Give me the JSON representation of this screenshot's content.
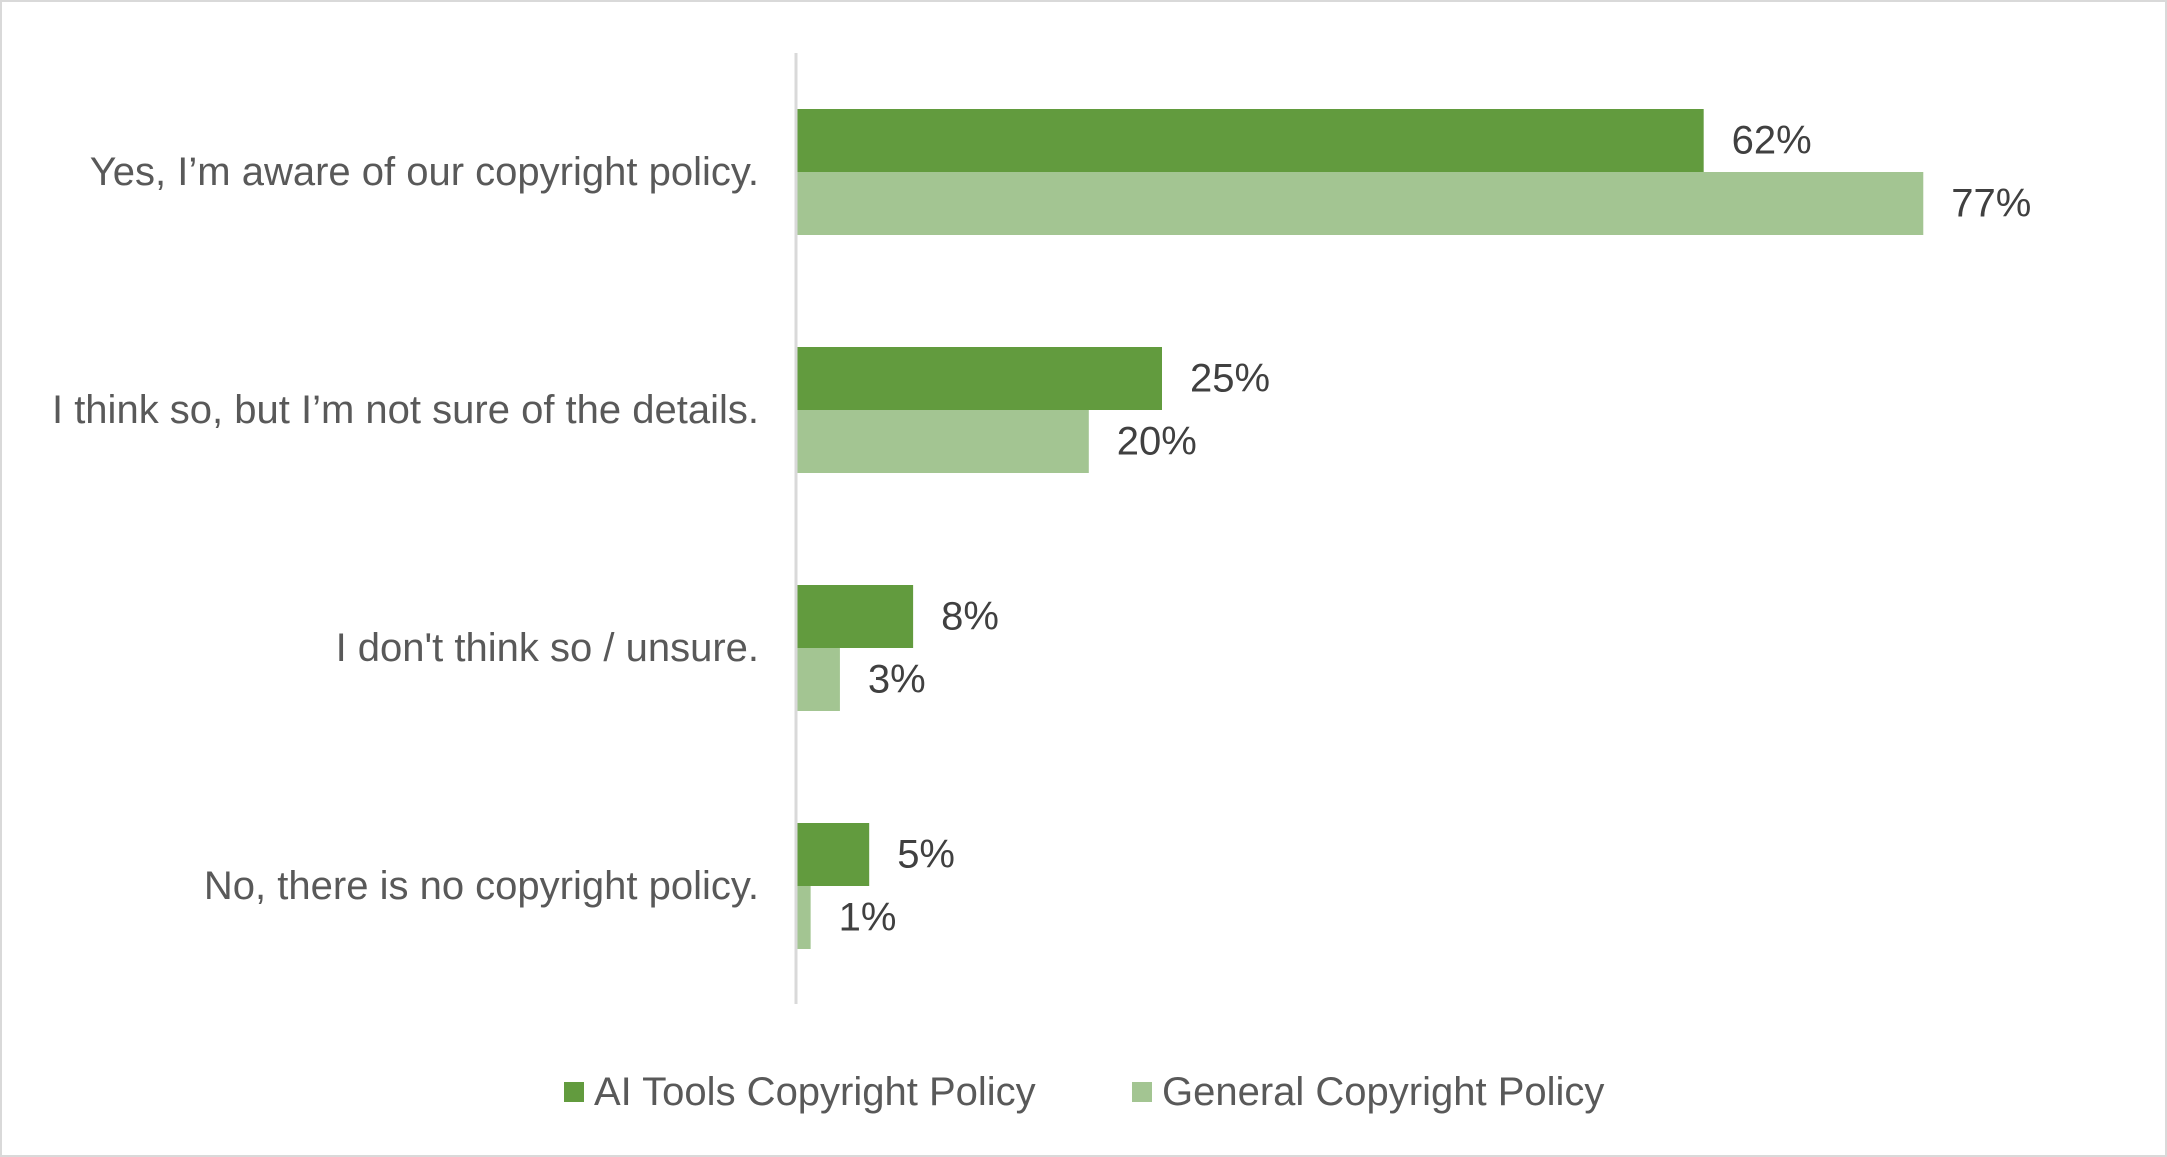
{
  "chart_data": {
    "type": "bar",
    "orientation": "horizontal",
    "categories": [
      "Yes, I’m aware of our copyright policy.",
      "I think so, but I’m not sure of the details.",
      "I don't think so / unsure.",
      "No, there is no copyright policy."
    ],
    "series": [
      {
        "name": "AI Tools Copyright Policy",
        "values": [
          62,
          25,
          8,
          5
        ],
        "labels": [
          "62%",
          "25%",
          "8%",
          "5%"
        ],
        "color": "#629b3e"
      },
      {
        "name": "General Copyright Policy",
        "values": [
          77,
          20,
          3,
          1
        ],
        "labels": [
          "77%",
          "20%",
          "3%",
          "1%"
        ],
        "color": "#a3c592"
      }
    ],
    "xlim": [
      0,
      100
    ],
    "grid": false,
    "legend_position": "bottom",
    "axis_color": "#d9d9d9"
  }
}
